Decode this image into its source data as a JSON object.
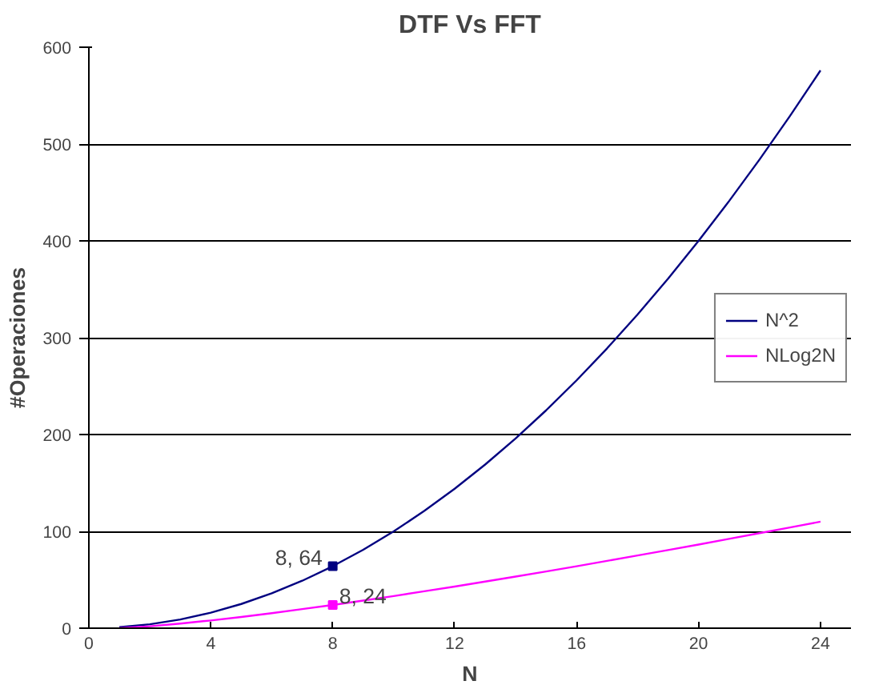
{
  "chart_data": {
    "type": "line",
    "title": "DTF Vs FFT",
    "xlabel": "N",
    "ylabel": "#Operaciones",
    "x": [
      1,
      2,
      3,
      4,
      5,
      6,
      7,
      8,
      9,
      10,
      11,
      12,
      13,
      14,
      15,
      16,
      17,
      18,
      19,
      20,
      21,
      22,
      23,
      24
    ],
    "xlim": [
      0,
      25
    ],
    "xticks": [
      0,
      4,
      8,
      12,
      16,
      20,
      24
    ],
    "ylim": [
      0,
      600
    ],
    "yticks": [
      0,
      100,
      200,
      300,
      400,
      500,
      600
    ],
    "grid": "y",
    "legend": "right",
    "marker": "none",
    "line_style": "solid",
    "series": [
      {
        "name": "N^2",
        "color": "#000080",
        "values": [
          1,
          4,
          9,
          16,
          25,
          36,
          49,
          64,
          81,
          100,
          121,
          144,
          169,
          196,
          225,
          256,
          289,
          324,
          361,
          400,
          441,
          484,
          529,
          576
        ]
      },
      {
        "name": "NLog2N",
        "color": "#ff00ff",
        "values": [
          0,
          2,
          4.8,
          8,
          11.6,
          15.5,
          19.7,
          24,
          28.5,
          33.2,
          38.1,
          43,
          48.1,
          53.3,
          58.6,
          64,
          69.5,
          75.1,
          80.7,
          86.4,
          92.2,
          98.1,
          104,
          110
        ]
      },
      {
        "type": "scatter",
        "x": [
          8
        ],
        "marker": "square",
        "color": "#000080",
        "values": [
          64
        ]
      },
      {
        "type": "scatter",
        "x": [
          8
        ],
        "marker": "square",
        "color": "#ff00ff",
        "values": [
          24
        ]
      }
    ],
    "annotations": [
      {
        "text": "8, 64",
        "x": 8,
        "y": 64
      },
      {
        "text": "8, 24",
        "x": 8,
        "y": 24
      }
    ]
  }
}
